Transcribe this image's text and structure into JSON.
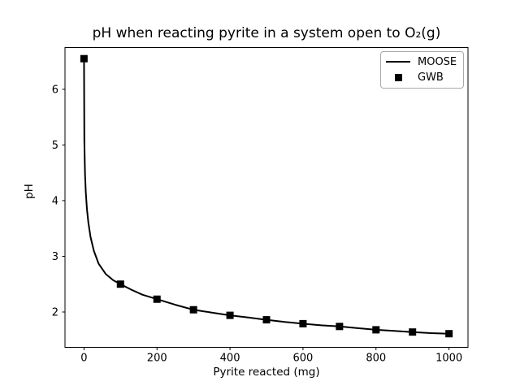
{
  "figure": {
    "background": "#ffffff"
  },
  "chart_data": {
    "type": "line",
    "title": "pH when reacting pyrite in a system open to O₂(g)",
    "xlabel": "Pyrite reacted (mg)",
    "ylabel": "pH",
    "xlim": [
      -52,
      1052
    ],
    "ylim": [
      1.365,
      6.75
    ],
    "xticks": [
      0,
      200,
      400,
      600,
      800,
      1000
    ],
    "xtick_labels": [
      "0",
      "200",
      "400",
      "600",
      "800",
      "1000"
    ],
    "yticks": [
      2,
      3,
      4,
      5,
      6
    ],
    "ytick_labels": [
      "2",
      "3",
      "4",
      "5",
      "6"
    ],
    "grid": false,
    "legend_position": "upper right",
    "colors": {
      "line": "#000000",
      "marker": "#000000",
      "axes": "#000000",
      "legend_border": "#aaaaaa"
    },
    "series": [
      {
        "name": "MOOSE",
        "type": "line",
        "x": [
          0,
          1,
          2,
          3,
          5,
          8,
          12,
          18,
          27,
          40,
          60,
          80,
          100,
          130,
          160,
          200,
          250,
          300,
          350,
          400,
          450,
          500,
          550,
          600,
          650,
          700,
          750,
          800,
          850,
          900,
          950,
          1000
        ],
        "y": [
          6.55,
          5.1,
          4.7,
          4.45,
          4.15,
          3.85,
          3.6,
          3.35,
          3.1,
          2.87,
          2.68,
          2.57,
          2.5,
          2.4,
          2.31,
          2.23,
          2.13,
          2.04,
          1.99,
          1.94,
          1.9,
          1.86,
          1.82,
          1.79,
          1.76,
          1.74,
          1.71,
          1.68,
          1.66,
          1.64,
          1.62,
          1.61
        ]
      },
      {
        "name": "GWB",
        "type": "scatter",
        "marker": "square",
        "x": [
          0,
          100,
          200,
          300,
          400,
          500,
          600,
          700,
          800,
          900,
          1000
        ],
        "y": [
          6.55,
          2.5,
          2.23,
          2.04,
          1.94,
          1.86,
          1.79,
          1.74,
          1.68,
          1.64,
          1.61
        ]
      }
    ]
  },
  "legend": {
    "items": [
      {
        "label": "MOOSE"
      },
      {
        "label": "GWB"
      }
    ]
  }
}
